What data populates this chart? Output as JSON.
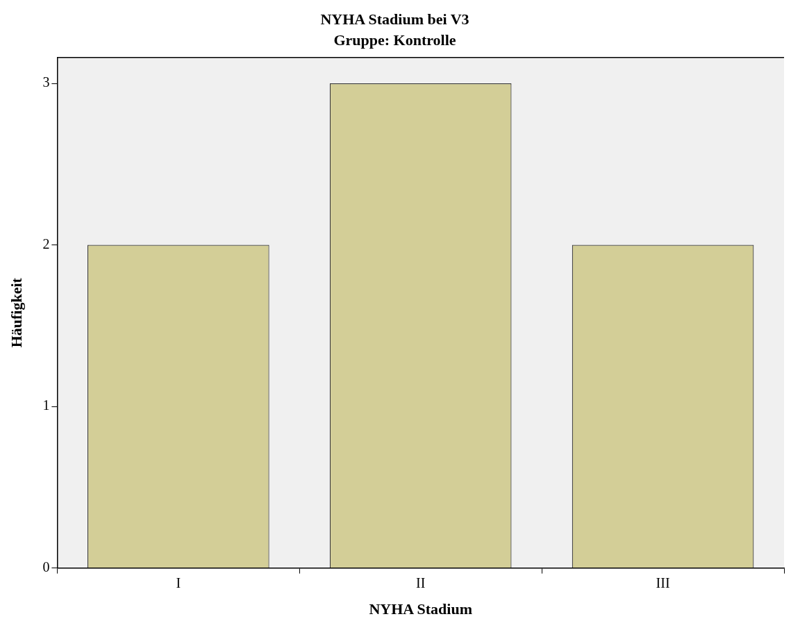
{
  "chart_data": {
    "type": "bar",
    "title": "NYHA Stadium bei V3",
    "subtitle": "Gruppe: Kontrolle",
    "xlabel": "NYHA Stadium",
    "ylabel": "Häufigkeit",
    "categories": [
      "I",
      "II",
      "III"
    ],
    "values": [
      2,
      3,
      2
    ],
    "color": "#d3ce97",
    "ylim": [
      0,
      3.16
    ],
    "yticks": [
      0,
      1,
      2,
      3
    ],
    "grid": false,
    "legend": false
  }
}
